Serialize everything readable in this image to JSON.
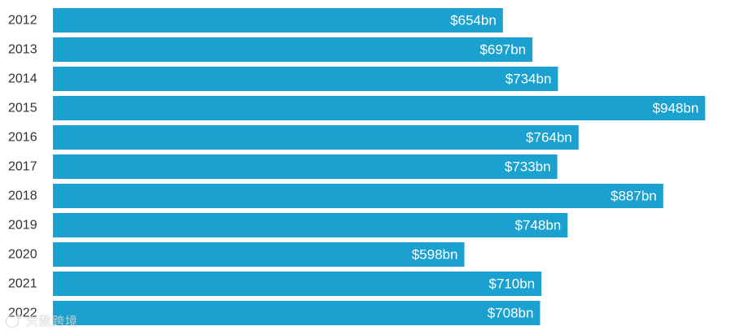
{
  "chart_data": {
    "type": "bar",
    "orientation": "horizontal",
    "categories": [
      "2012",
      "2013",
      "2014",
      "2015",
      "2016",
      "2017",
      "2018",
      "2019",
      "2020",
      "2021",
      "2022"
    ],
    "values": [
      654,
      697,
      734,
      948,
      764,
      733,
      887,
      748,
      598,
      710,
      708
    ],
    "value_labels": [
      "$654bn",
      "$697bn",
      "$734bn",
      "$948bn",
      "$764bn",
      "$733bn",
      "$887bn",
      "$748bn",
      "$598bn",
      "$710bn",
      "$708bn"
    ],
    "unit": "bn",
    "xlim": [
      0,
      950
    ],
    "grid": false,
    "legend": "none",
    "bar_color": "#1aa1cf"
  },
  "watermark": {
    "text": "大数跨境",
    "icon": "watermark-logo-icon"
  }
}
